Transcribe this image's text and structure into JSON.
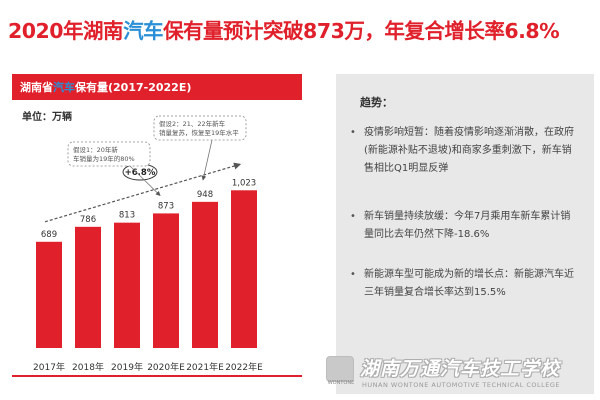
{
  "headline": {
    "part1": "2020年湖南",
    "highlight": "汽车",
    "part2": "保有量预计突破873万，年复合增长率6.8%"
  },
  "panel": {
    "title_part1": "湖南省",
    "title_highlight": "汽车",
    "title_part2": "保有量(2017-2022E)",
    "unit_label": "单位：万辆"
  },
  "chart_data": {
    "type": "bar",
    "title": "湖南省汽车保有量(2017-2022E)",
    "unit": "单位：万辆",
    "categories": [
      "2017年",
      "2018年",
      "2019年",
      "2020年E",
      "2021年E",
      "2022年E"
    ],
    "values": [
      689,
      786,
      813,
      873,
      948,
      1023
    ],
    "value_labels": [
      "689",
      "786",
      "813",
      "873",
      "948",
      "1,023"
    ],
    "bar_color": "#e0202a",
    "growth_label": "+6.8%",
    "annotations": [
      "假设1：20年新车销量为19年的80%",
      "假设2：21、22年新车销量复苏，恢复至19年水平"
    ]
  },
  "trend": {
    "title": "趋势：",
    "items": [
      "疫情影响短暂：随着疫情影响逐渐消散，在政府(新能源补贴不退坡)和商家多重刺激下，新车销售相比Q1明显反弹",
      "新车销量持续放缓：今年7月乘用车新车累计销量同比去年仍然下降-18.6%",
      "新能源车型可能成为新的增长点：新能源汽车近三年销量复合增长率达到15.5%"
    ]
  },
  "footer": {
    "logo_text": "WONTONE",
    "school_name": "湖南万通汽车技工学校",
    "school_english": "HUNAN WONTONE AUTOMOTIVE TECHNICAL COLLEGE"
  },
  "colors": {
    "accent_red": "#e0202a",
    "highlight_blue": "#2a8fd6",
    "panel_gray": "#e8e8e8"
  }
}
